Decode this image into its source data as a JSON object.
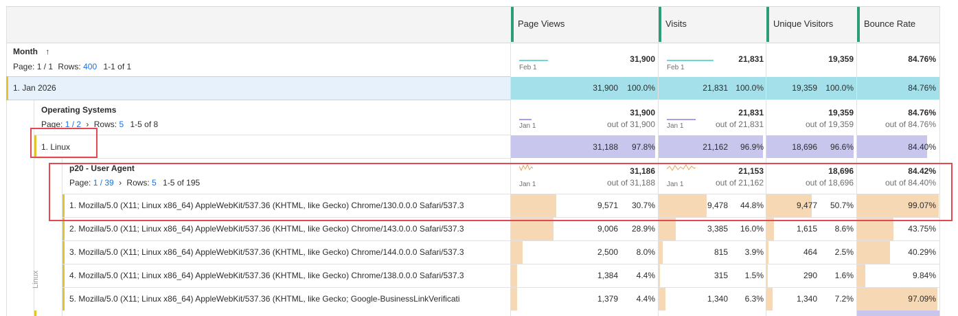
{
  "columns": [
    {
      "label": "Page Views"
    },
    {
      "label": "Visits"
    },
    {
      "label": "Unique Visitors"
    },
    {
      "label": "Bounce Rate"
    }
  ],
  "month": {
    "title": "Month",
    "sort_icon": "arrow-up-icon",
    "page_label": "Page:",
    "page_value": "1 / 1",
    "rows_label": "Rows:",
    "rows_value": "400",
    "range": "1-1 of 1",
    "spark_label_pv": "Feb 1",
    "spark_label_visits": "Feb 1",
    "totals": [
      "31,900",
      "21,831",
      "19,359",
      "84.76%"
    ]
  },
  "jan_row": {
    "label": "1.  Jan 2026",
    "cells": [
      {
        "value": "31,900",
        "pct": "100.0%"
      },
      {
        "value": "21,831",
        "pct": "100.0%"
      },
      {
        "value": "19,359",
        "pct": "100.0%"
      },
      {
        "value": "84.76%",
        "pct": ""
      }
    ]
  },
  "os": {
    "title": "Operating Systems",
    "page_label": "Page:",
    "page_value": "1 / 2",
    "rows_label": "Rows:",
    "rows_value": "5",
    "range": "1-5 of 8",
    "spark_label": "Jan 1",
    "totals": [
      {
        "value": "31,900",
        "sub": "out of 31,900"
      },
      {
        "value": "21,831",
        "sub": "out of 21,831"
      },
      {
        "value": "19,359",
        "sub": "out of 19,359"
      },
      {
        "value": "84.76%",
        "sub": "out of 84.76%"
      }
    ]
  },
  "linux_row": {
    "label": "1.  Linux",
    "cells": [
      {
        "value": "31,188",
        "pct": "97.8%"
      },
      {
        "value": "21,162",
        "pct": "96.9%"
      },
      {
        "value": "18,696",
        "pct": "96.6%"
      },
      {
        "value": "84.40%",
        "pct": ""
      }
    ]
  },
  "ua": {
    "title": "p20 - User Agent",
    "page_label": "Page:",
    "page_value": "1 / 39",
    "rows_label": "Rows:",
    "rows_value": "5",
    "range": "1-5 of 195",
    "spark_label": "Jan 1",
    "side_label": "Linux",
    "totals": [
      {
        "value": "31,186",
        "sub": "out of 31,188"
      },
      {
        "value": "21,153",
        "sub": "out of 21,162"
      },
      {
        "value": "18,696",
        "sub": "out of 18,696"
      },
      {
        "value": "84.42%",
        "sub": "out of 84.40%"
      }
    ]
  },
  "ua_rows": [
    {
      "label": "1.  Mozilla/5.0 (X11; Linux x86_64) AppleWebKit/537.36 (KHTML, like Gecko) Chrome/130.0.0.0 Safari/537.3",
      "cells": [
        {
          "value": "9,571",
          "pct": "30.7%",
          "frac": 0.307
        },
        {
          "value": "9,478",
          "pct": "44.8%",
          "frac": 0.448
        },
        {
          "value": "9,477",
          "pct": "50.7%",
          "frac": 0.507
        },
        {
          "value": "99.07%",
          "pct": "",
          "frac": 0.9907
        }
      ]
    },
    {
      "label": "2.  Mozilla/5.0 (X11; Linux x86_64) AppleWebKit/537.36 (KHTML, like Gecko) Chrome/143.0.0.0 Safari/537.3",
      "cells": [
        {
          "value": "9,006",
          "pct": "28.9%",
          "frac": 0.289
        },
        {
          "value": "3,385",
          "pct": "16.0%",
          "frac": 0.16
        },
        {
          "value": "1,615",
          "pct": "8.6%",
          "frac": 0.086
        },
        {
          "value": "43.75%",
          "pct": "",
          "frac": 0.4375
        }
      ]
    },
    {
      "label": "3.  Mozilla/5.0 (X11; Linux x86_64) AppleWebKit/537.36 (KHTML, like Gecko) Chrome/144.0.0.0 Safari/537.3",
      "cells": [
        {
          "value": "2,500",
          "pct": "8.0%",
          "frac": 0.08
        },
        {
          "value": "815",
          "pct": "3.9%",
          "frac": 0.039
        },
        {
          "value": "464",
          "pct": "2.5%",
          "frac": 0.025
        },
        {
          "value": "40.29%",
          "pct": "",
          "frac": 0.4029
        }
      ]
    },
    {
      "label": "4.  Mozilla/5.0 (X11; Linux x86_64) AppleWebKit/537.36 (KHTML, like Gecko) Chrome/138.0.0.0 Safari/537.3",
      "cells": [
        {
          "value": "1,384",
          "pct": "4.4%",
          "frac": 0.044
        },
        {
          "value": "315",
          "pct": "1.5%",
          "frac": 0.015
        },
        {
          "value": "290",
          "pct": "1.6%",
          "frac": 0.016
        },
        {
          "value": "9.84%",
          "pct": "",
          "frac": 0.0984
        }
      ]
    },
    {
      "label": "5.  Mozilla/5.0 (X11; Linux x86_64) AppleWebKit/537.36 (KHTML, like Gecko; Google-BusinessLinkVerificati",
      "cells": [
        {
          "value": "1,379",
          "pct": "4.4%",
          "frac": 0.044
        },
        {
          "value": "1,340",
          "pct": "6.3%",
          "frac": 0.063
        },
        {
          "value": "1,340",
          "pct": "7.2%",
          "frac": 0.072
        },
        {
          "value": "97.09%",
          "pct": "",
          "frac": 0.9709
        }
      ]
    }
  ],
  "colors": {
    "header_bg": "#f4f4f4",
    "column_grip": "#2d9d78",
    "cyan_bar": "#a4e0e9",
    "lavender_bar": "#c9c6ee",
    "peach_bar": "#f7d8b5",
    "highlight_row": "#e6f1fb",
    "annotation_red": "#e34850",
    "link": "#1473e6",
    "row_marker": "#e0c42c"
  }
}
